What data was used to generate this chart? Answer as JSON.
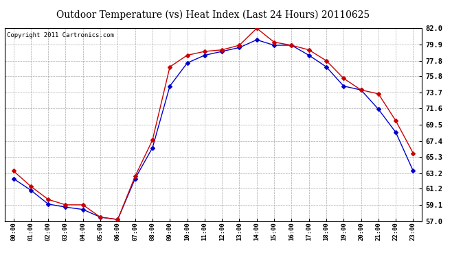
{
  "title": "Outdoor Temperature (vs) Heat Index (Last 24 Hours) 20110625",
  "copyright": "Copyright 2011 Cartronics.com",
  "x_labels": [
    "00:00",
    "01:00",
    "02:00",
    "03:00",
    "04:00",
    "05:00",
    "06:00",
    "07:00",
    "08:00",
    "09:00",
    "10:00",
    "11:00",
    "12:00",
    "13:00",
    "14:00",
    "15:00",
    "16:00",
    "17:00",
    "18:00",
    "19:00",
    "20:00",
    "21:00",
    "22:00",
    "23:00"
  ],
  "temp_blue": [
    62.5,
    61.0,
    59.2,
    58.8,
    58.5,
    57.5,
    57.2,
    62.5,
    66.5,
    74.5,
    77.5,
    78.5,
    79.0,
    79.5,
    80.5,
    79.8,
    79.8,
    78.5,
    77.0,
    74.5,
    74.0,
    71.5,
    68.5,
    63.5
  ],
  "heat_red": [
    63.5,
    61.5,
    59.8,
    59.1,
    59.1,
    57.5,
    57.2,
    62.8,
    67.5,
    77.0,
    78.5,
    79.0,
    79.2,
    79.8,
    82.0,
    80.2,
    79.8,
    79.2,
    77.8,
    75.5,
    74.0,
    73.5,
    70.0,
    65.8
  ],
  "ylim_min": 57.0,
  "ylim_max": 82.0,
  "yticks": [
    57.0,
    59.1,
    61.2,
    63.2,
    65.3,
    67.4,
    69.5,
    71.6,
    73.7,
    75.8,
    77.8,
    79.9,
    82.0
  ],
  "blue_color": "#0000cc",
  "red_color": "#cc0000",
  "bg_color": "#ffffff",
  "plot_bg": "#ffffff",
  "grid_color": "#aaaaaa",
  "title_fontsize": 10,
  "copyright_fontsize": 6.5
}
